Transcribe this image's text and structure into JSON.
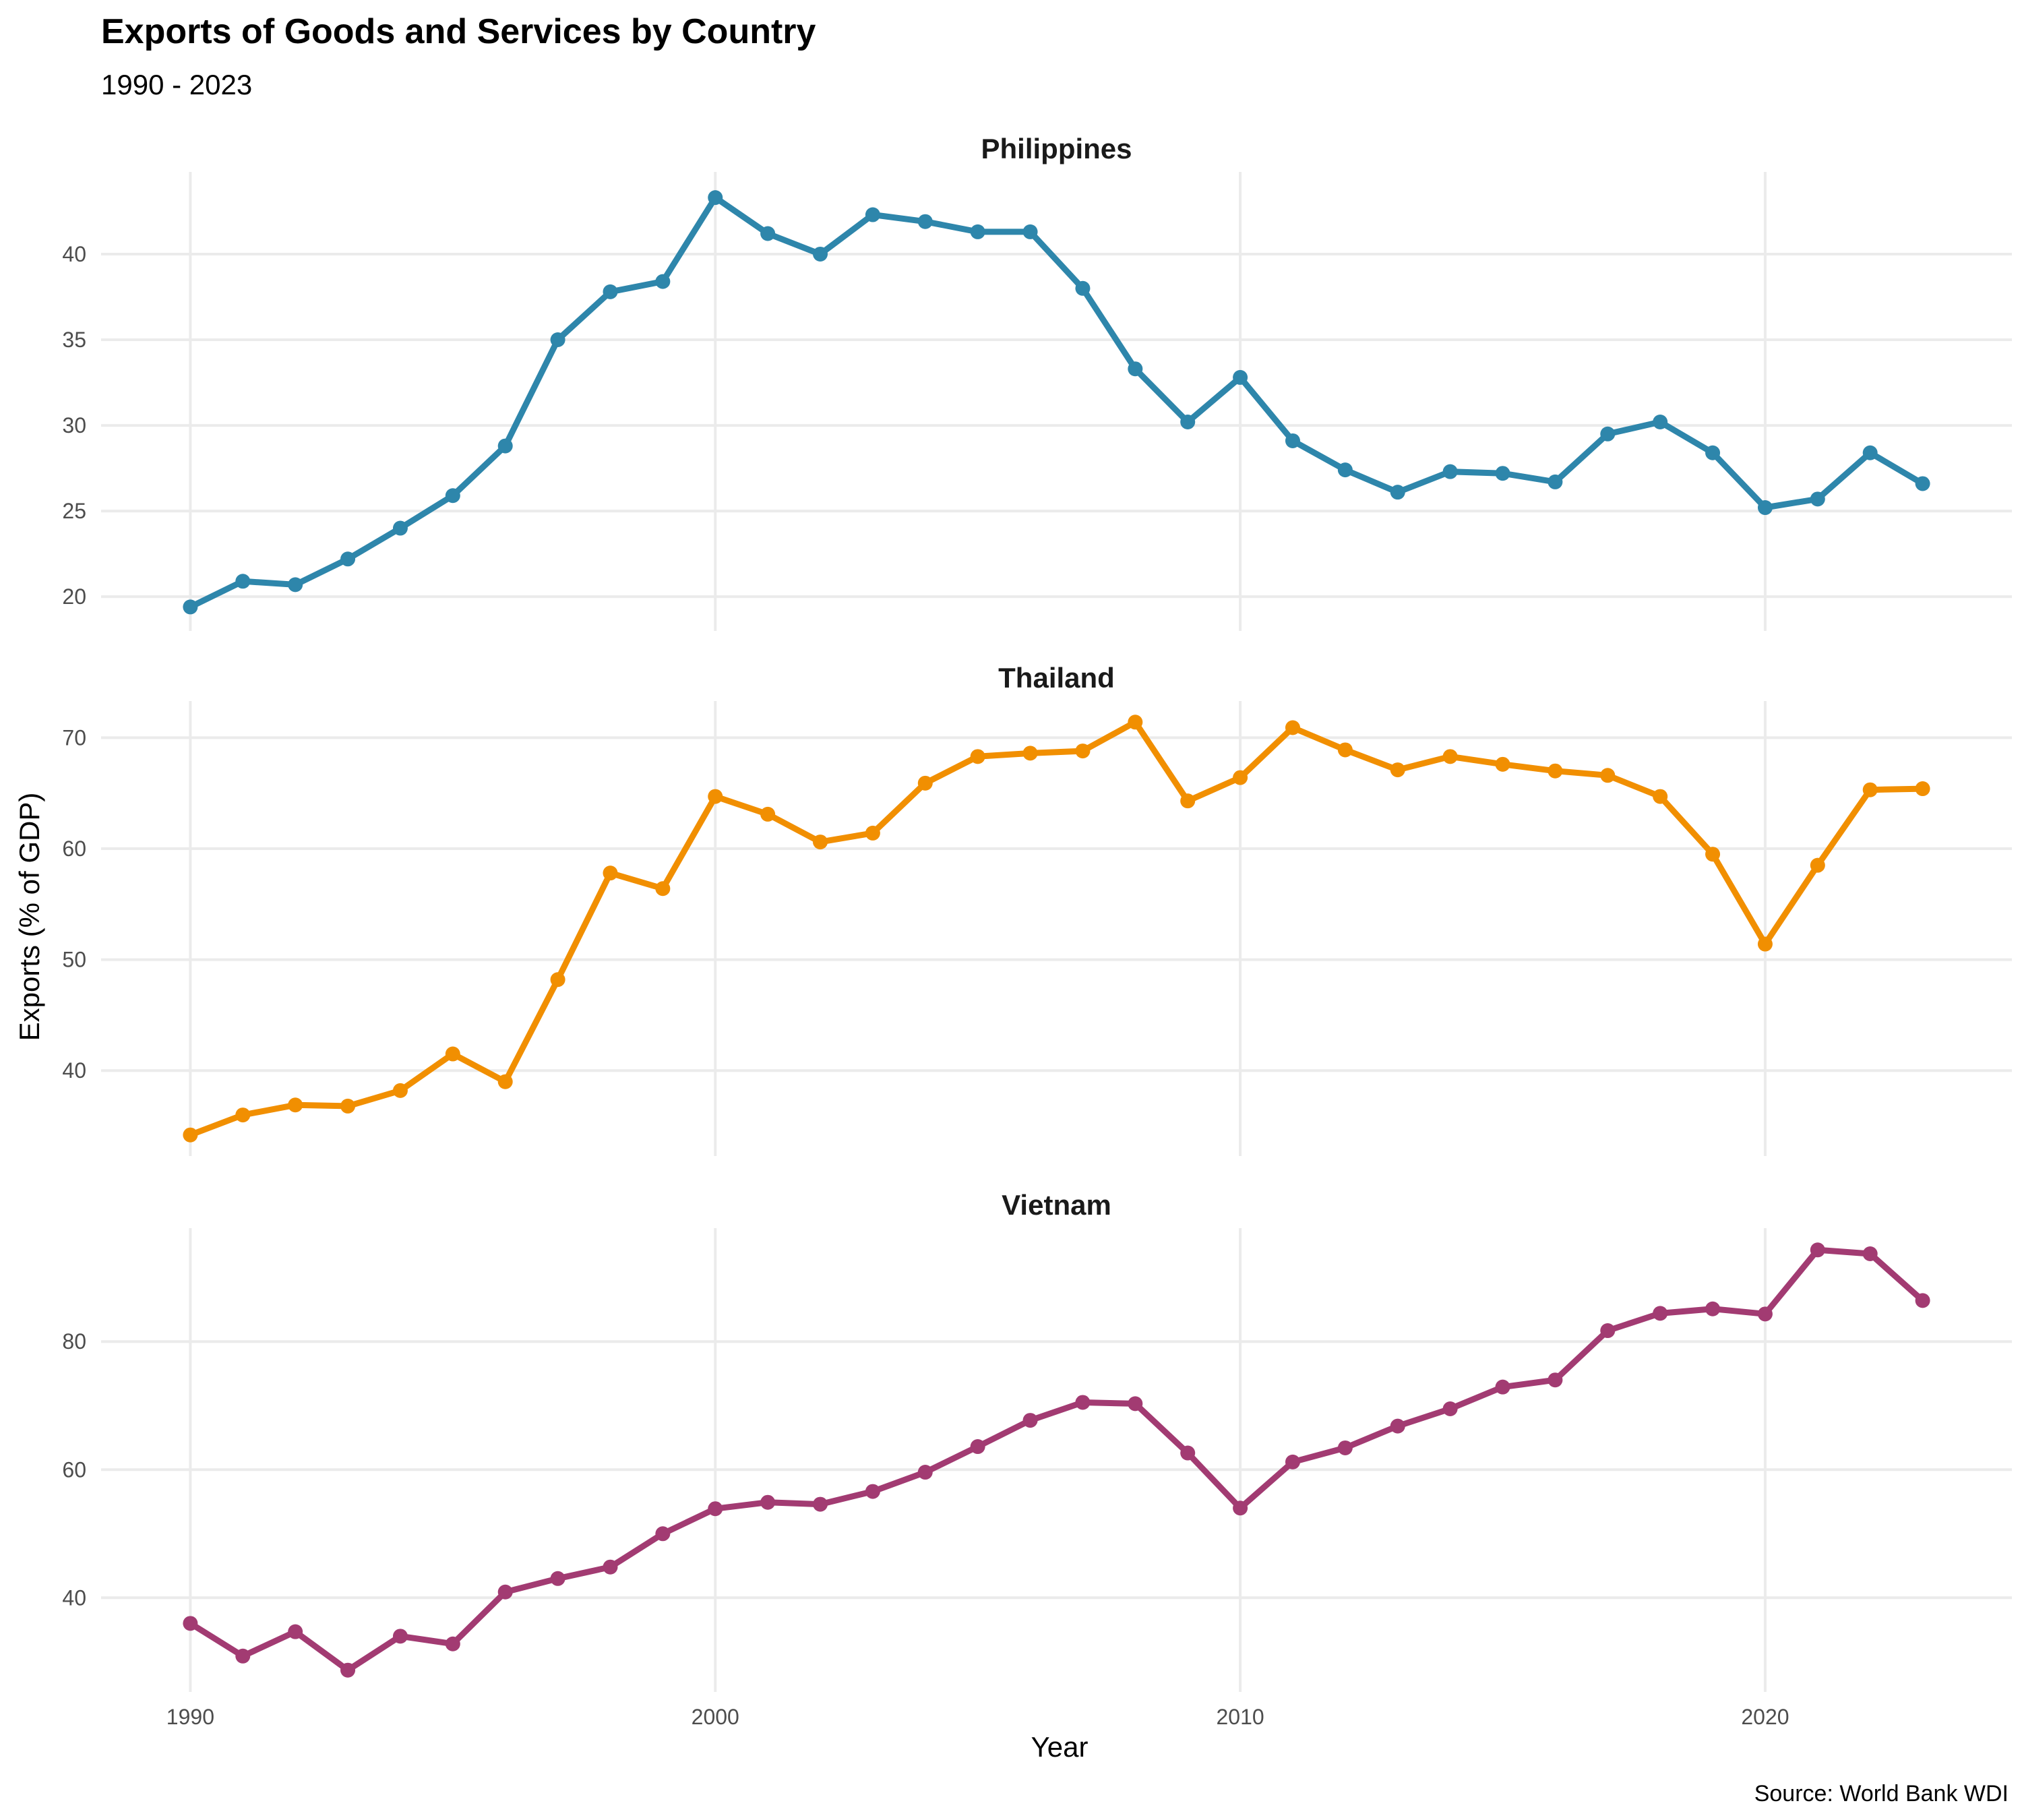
{
  "chart_data": {
    "type": "line",
    "title": "Exports of Goods and Services by Country",
    "subtitle": "1990 - 2023",
    "xlabel": "Year",
    "ylabel": "Exports (% of GDP)",
    "caption": "Source: World Bank WDI",
    "x_ticks": [
      1990,
      2000,
      2010,
      2020
    ],
    "xlim": [
      1988.3,
      2024.7
    ],
    "grid": true,
    "facets": [
      {
        "name": "Philippines",
        "color": "#2E86AB",
        "ylim": [
          18.0,
          44.8
        ],
        "y_ticks": [
          20,
          25,
          30,
          35,
          40
        ],
        "points": [
          [
            1990,
            19.4
          ],
          [
            1991,
            20.9
          ],
          [
            1992,
            20.7
          ],
          [
            1993,
            22.2
          ],
          [
            1994,
            24.0
          ],
          [
            1995,
            25.9
          ],
          [
            1996,
            28.8
          ],
          [
            1997,
            35.0
          ],
          [
            1998,
            37.8
          ],
          [
            1999,
            38.4
          ],
          [
            2000,
            43.3
          ],
          [
            2001,
            41.2
          ],
          [
            2002,
            40.0
          ],
          [
            2003,
            42.3
          ],
          [
            2004,
            41.9
          ],
          [
            2005,
            41.3
          ],
          [
            2006,
            41.3
          ],
          [
            2007,
            38.0
          ],
          [
            2008,
            33.3
          ],
          [
            2009,
            30.2
          ],
          [
            2010,
            32.8
          ],
          [
            2011,
            29.1
          ],
          [
            2012,
            27.4
          ],
          [
            2013,
            26.1
          ],
          [
            2014,
            27.3
          ],
          [
            2015,
            27.2
          ],
          [
            2016,
            26.7
          ],
          [
            2017,
            29.5
          ],
          [
            2018,
            30.2
          ],
          [
            2019,
            28.4
          ],
          [
            2020,
            25.2
          ],
          [
            2021,
            25.7
          ],
          [
            2022,
            28.4
          ],
          [
            2023,
            26.6
          ]
        ]
      },
      {
        "name": "Thailand",
        "color": "#F18F01",
        "ylim": [
          32.3,
          73.3
        ],
        "y_ticks": [
          40,
          50,
          60,
          70
        ],
        "points": [
          [
            1990,
            34.2
          ],
          [
            1991,
            36.0
          ],
          [
            1992,
            36.9
          ],
          [
            1993,
            36.8
          ],
          [
            1994,
            38.2
          ],
          [
            1995,
            41.5
          ],
          [
            1996,
            39.0
          ],
          [
            1997,
            48.2
          ],
          [
            1998,
            57.8
          ],
          [
            1999,
            56.4
          ],
          [
            2000,
            64.7
          ],
          [
            2001,
            63.1
          ],
          [
            2002,
            60.6
          ],
          [
            2003,
            61.4
          ],
          [
            2004,
            65.9
          ],
          [
            2005,
            68.3
          ],
          [
            2006,
            68.6
          ],
          [
            2007,
            68.8
          ],
          [
            2008,
            71.4
          ],
          [
            2009,
            64.3
          ],
          [
            2010,
            66.4
          ],
          [
            2011,
            70.9
          ],
          [
            2012,
            68.9
          ],
          [
            2013,
            67.1
          ],
          [
            2014,
            68.3
          ],
          [
            2015,
            67.6
          ],
          [
            2016,
            67.0
          ],
          [
            2017,
            66.6
          ],
          [
            2018,
            64.7
          ],
          [
            2019,
            59.5
          ],
          [
            2020,
            51.4
          ],
          [
            2021,
            58.5
          ],
          [
            2022,
            65.3
          ],
          [
            2023,
            65.4
          ]
        ]
      },
      {
        "name": "Vietnam",
        "color": "#A23B72",
        "ylim": [
          25.3,
          97.7
        ],
        "y_ticks": [
          40,
          60,
          80
        ],
        "points": [
          [
            1990,
            36.0
          ],
          [
            1991,
            30.9
          ],
          [
            1992,
            34.7
          ],
          [
            1993,
            28.7
          ],
          [
            1994,
            34.0
          ],
          [
            1995,
            32.8
          ],
          [
            1996,
            40.9
          ],
          [
            1997,
            43.0
          ],
          [
            1998,
            44.8
          ],
          [
            1999,
            50.0
          ],
          [
            2000,
            53.9
          ],
          [
            2001,
            54.9
          ],
          [
            2002,
            54.6
          ],
          [
            2003,
            56.6
          ],
          [
            2004,
            59.6
          ],
          [
            2005,
            63.6
          ],
          [
            2006,
            67.7
          ],
          [
            2007,
            70.5
          ],
          [
            2008,
            70.3
          ],
          [
            2009,
            62.6
          ],
          [
            2010,
            54.0
          ],
          [
            2011,
            61.2
          ],
          [
            2012,
            63.4
          ],
          [
            2013,
            66.8
          ],
          [
            2014,
            69.5
          ],
          [
            2015,
            72.9
          ],
          [
            2016,
            74.0
          ],
          [
            2017,
            81.7
          ],
          [
            2018,
            84.4
          ],
          [
            2019,
            85.1
          ],
          [
            2020,
            84.3
          ],
          [
            2021,
            94.3
          ],
          [
            2022,
            93.7
          ],
          [
            2023,
            86.4
          ]
        ]
      }
    ]
  }
}
